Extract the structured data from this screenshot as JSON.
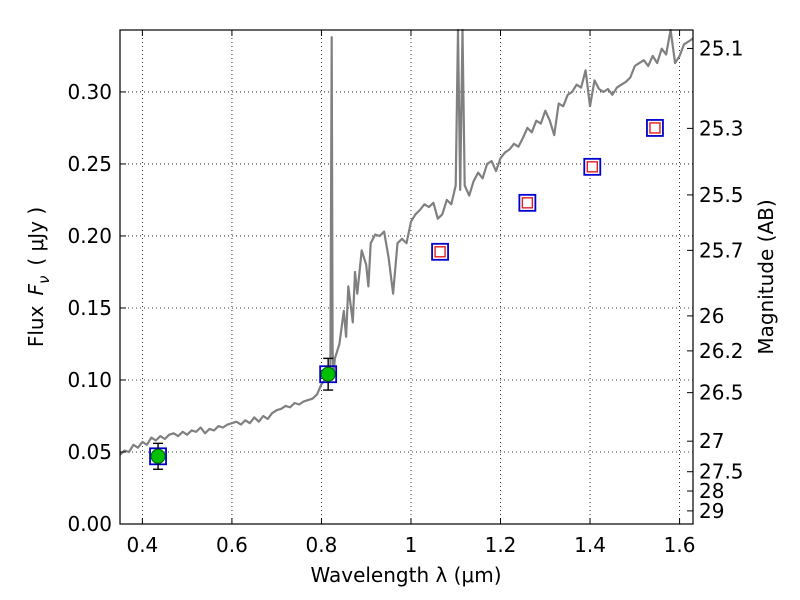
{
  "chart_data": {
    "type": "scatter",
    "xlabel": "Wavelength  λ (μm)",
    "ylabel_parts": [
      "Flux",
      "F",
      "ν",
      "( μJy )"
    ],
    "y2label": "Magnitude (AB)",
    "xlim": [
      0.35,
      1.63
    ],
    "ylim": [
      0.0,
      0.343
    ],
    "grid": true,
    "xticks": [
      0.4,
      0.6,
      0.8,
      1.0,
      1.2,
      1.4,
      1.6
    ],
    "xtick_labels": [
      "0.4",
      "0.6",
      "0.8",
      "1",
      "1.2",
      "1.4",
      "1.6"
    ],
    "yticks": [
      0.0,
      0.05,
      0.1,
      0.15,
      0.2,
      0.25,
      0.3
    ],
    "ytick_labels": [
      "0.00",
      "0.05",
      "0.10",
      "0.15",
      "0.20",
      "0.25",
      "0.30"
    ],
    "mag_ticks": [
      {
        "label": "25.1",
        "flux": 0.3302
      },
      {
        "label": "25.3",
        "flux": 0.2747
      },
      {
        "label": "25.5",
        "flux": 0.2285
      },
      {
        "label": "25.7",
        "flux": 0.19
      },
      {
        "label": "26",
        "flux": 0.1445
      },
      {
        "label": "26.2",
        "flux": 0.1202
      },
      {
        "label": "26.5",
        "flux": 0.0912
      },
      {
        "label": "27",
        "flux": 0.0575
      },
      {
        "label": "27.5",
        "flux": 0.0363
      },
      {
        "label": "28",
        "flux": 0.0229
      },
      {
        "label": "29",
        "flux": 0.0091
      }
    ],
    "spectrum": {
      "color": "#808080",
      "x": [
        0.35,
        0.36,
        0.37,
        0.38,
        0.39,
        0.4,
        0.41,
        0.42,
        0.43,
        0.44,
        0.45,
        0.46,
        0.47,
        0.48,
        0.49,
        0.5,
        0.51,
        0.52,
        0.53,
        0.54,
        0.55,
        0.56,
        0.57,
        0.58,
        0.59,
        0.6,
        0.61,
        0.62,
        0.63,
        0.64,
        0.65,
        0.66,
        0.67,
        0.68,
        0.69,
        0.7,
        0.71,
        0.72,
        0.73,
        0.74,
        0.75,
        0.76,
        0.77,
        0.78,
        0.79,
        0.8,
        0.81,
        0.815,
        0.82,
        0.823,
        0.825,
        0.827,
        0.83,
        0.84,
        0.85,
        0.855,
        0.86,
        0.87,
        0.875,
        0.88,
        0.89,
        0.9,
        0.905,
        0.91,
        0.92,
        0.93,
        0.94,
        0.95,
        0.96,
        0.97,
        0.98,
        0.99,
        1.0,
        1.01,
        1.02,
        1.03,
        1.04,
        1.05,
        1.06,
        1.07,
        1.08,
        1.09,
        1.1,
        1.105,
        1.11,
        1.115,
        1.12,
        1.13,
        1.14,
        1.15,
        1.16,
        1.17,
        1.18,
        1.19,
        1.2,
        1.21,
        1.22,
        1.23,
        1.24,
        1.25,
        1.26,
        1.27,
        1.28,
        1.29,
        1.3,
        1.31,
        1.32,
        1.33,
        1.34,
        1.35,
        1.36,
        1.37,
        1.38,
        1.39,
        1.4,
        1.41,
        1.42,
        1.43,
        1.44,
        1.45,
        1.46,
        1.47,
        1.48,
        1.49,
        1.5,
        1.51,
        1.52,
        1.53,
        1.54,
        1.55,
        1.56,
        1.57,
        1.58,
        1.59,
        1.6,
        1.61,
        1.62,
        1.63
      ],
      "y": [
        0.048,
        0.051,
        0.05,
        0.055,
        0.053,
        0.057,
        0.055,
        0.06,
        0.058,
        0.061,
        0.059,
        0.062,
        0.063,
        0.061,
        0.064,
        0.062,
        0.065,
        0.064,
        0.067,
        0.063,
        0.066,
        0.065,
        0.068,
        0.067,
        0.069,
        0.07,
        0.071,
        0.069,
        0.072,
        0.07,
        0.074,
        0.071,
        0.075,
        0.073,
        0.077,
        0.079,
        0.08,
        0.082,
        0.081,
        0.084,
        0.083,
        0.085,
        0.086,
        0.087,
        0.09,
        0.097,
        0.101,
        0.105,
        0.11,
        0.338,
        0.12,
        0.105,
        0.115,
        0.125,
        0.148,
        0.13,
        0.165,
        0.14,
        0.175,
        0.16,
        0.19,
        0.18,
        0.165,
        0.195,
        0.201,
        0.2,
        0.203,
        0.185,
        0.16,
        0.195,
        0.198,
        0.195,
        0.21,
        0.215,
        0.218,
        0.222,
        0.22,
        0.223,
        0.212,
        0.215,
        0.225,
        0.222,
        0.235,
        0.343,
        0.232,
        0.343,
        0.235,
        0.228,
        0.238,
        0.244,
        0.24,
        0.25,
        0.252,
        0.245,
        0.254,
        0.258,
        0.26,
        0.264,
        0.262,
        0.268,
        0.275,
        0.272,
        0.28,
        0.278,
        0.287,
        0.28,
        0.27,
        0.292,
        0.29,
        0.298,
        0.3,
        0.305,
        0.303,
        0.315,
        0.29,
        0.308,
        0.302,
        0.3,
        0.302,
        0.298,
        0.303,
        0.305,
        0.307,
        0.31,
        0.318,
        0.32,
        0.322,
        0.318,
        0.325,
        0.32,
        0.33,
        0.326,
        0.343,
        0.32,
        0.325,
        0.333,
        0.335,
        0.337
      ]
    },
    "detections": {
      "marker_color": "#00c000",
      "box_color": "#0000cc",
      "x": [
        0.435,
        0.815
      ],
      "y": [
        0.047,
        0.104
      ],
      "yerr": [
        0.009,
        0.011
      ]
    },
    "predictions": {
      "outer_color": "#0000cc",
      "inner_color": "#e02020",
      "x": [
        1.065,
        1.26,
        1.405,
        1.545
      ],
      "y": [
        0.189,
        0.223,
        0.248,
        0.275
      ]
    }
  }
}
